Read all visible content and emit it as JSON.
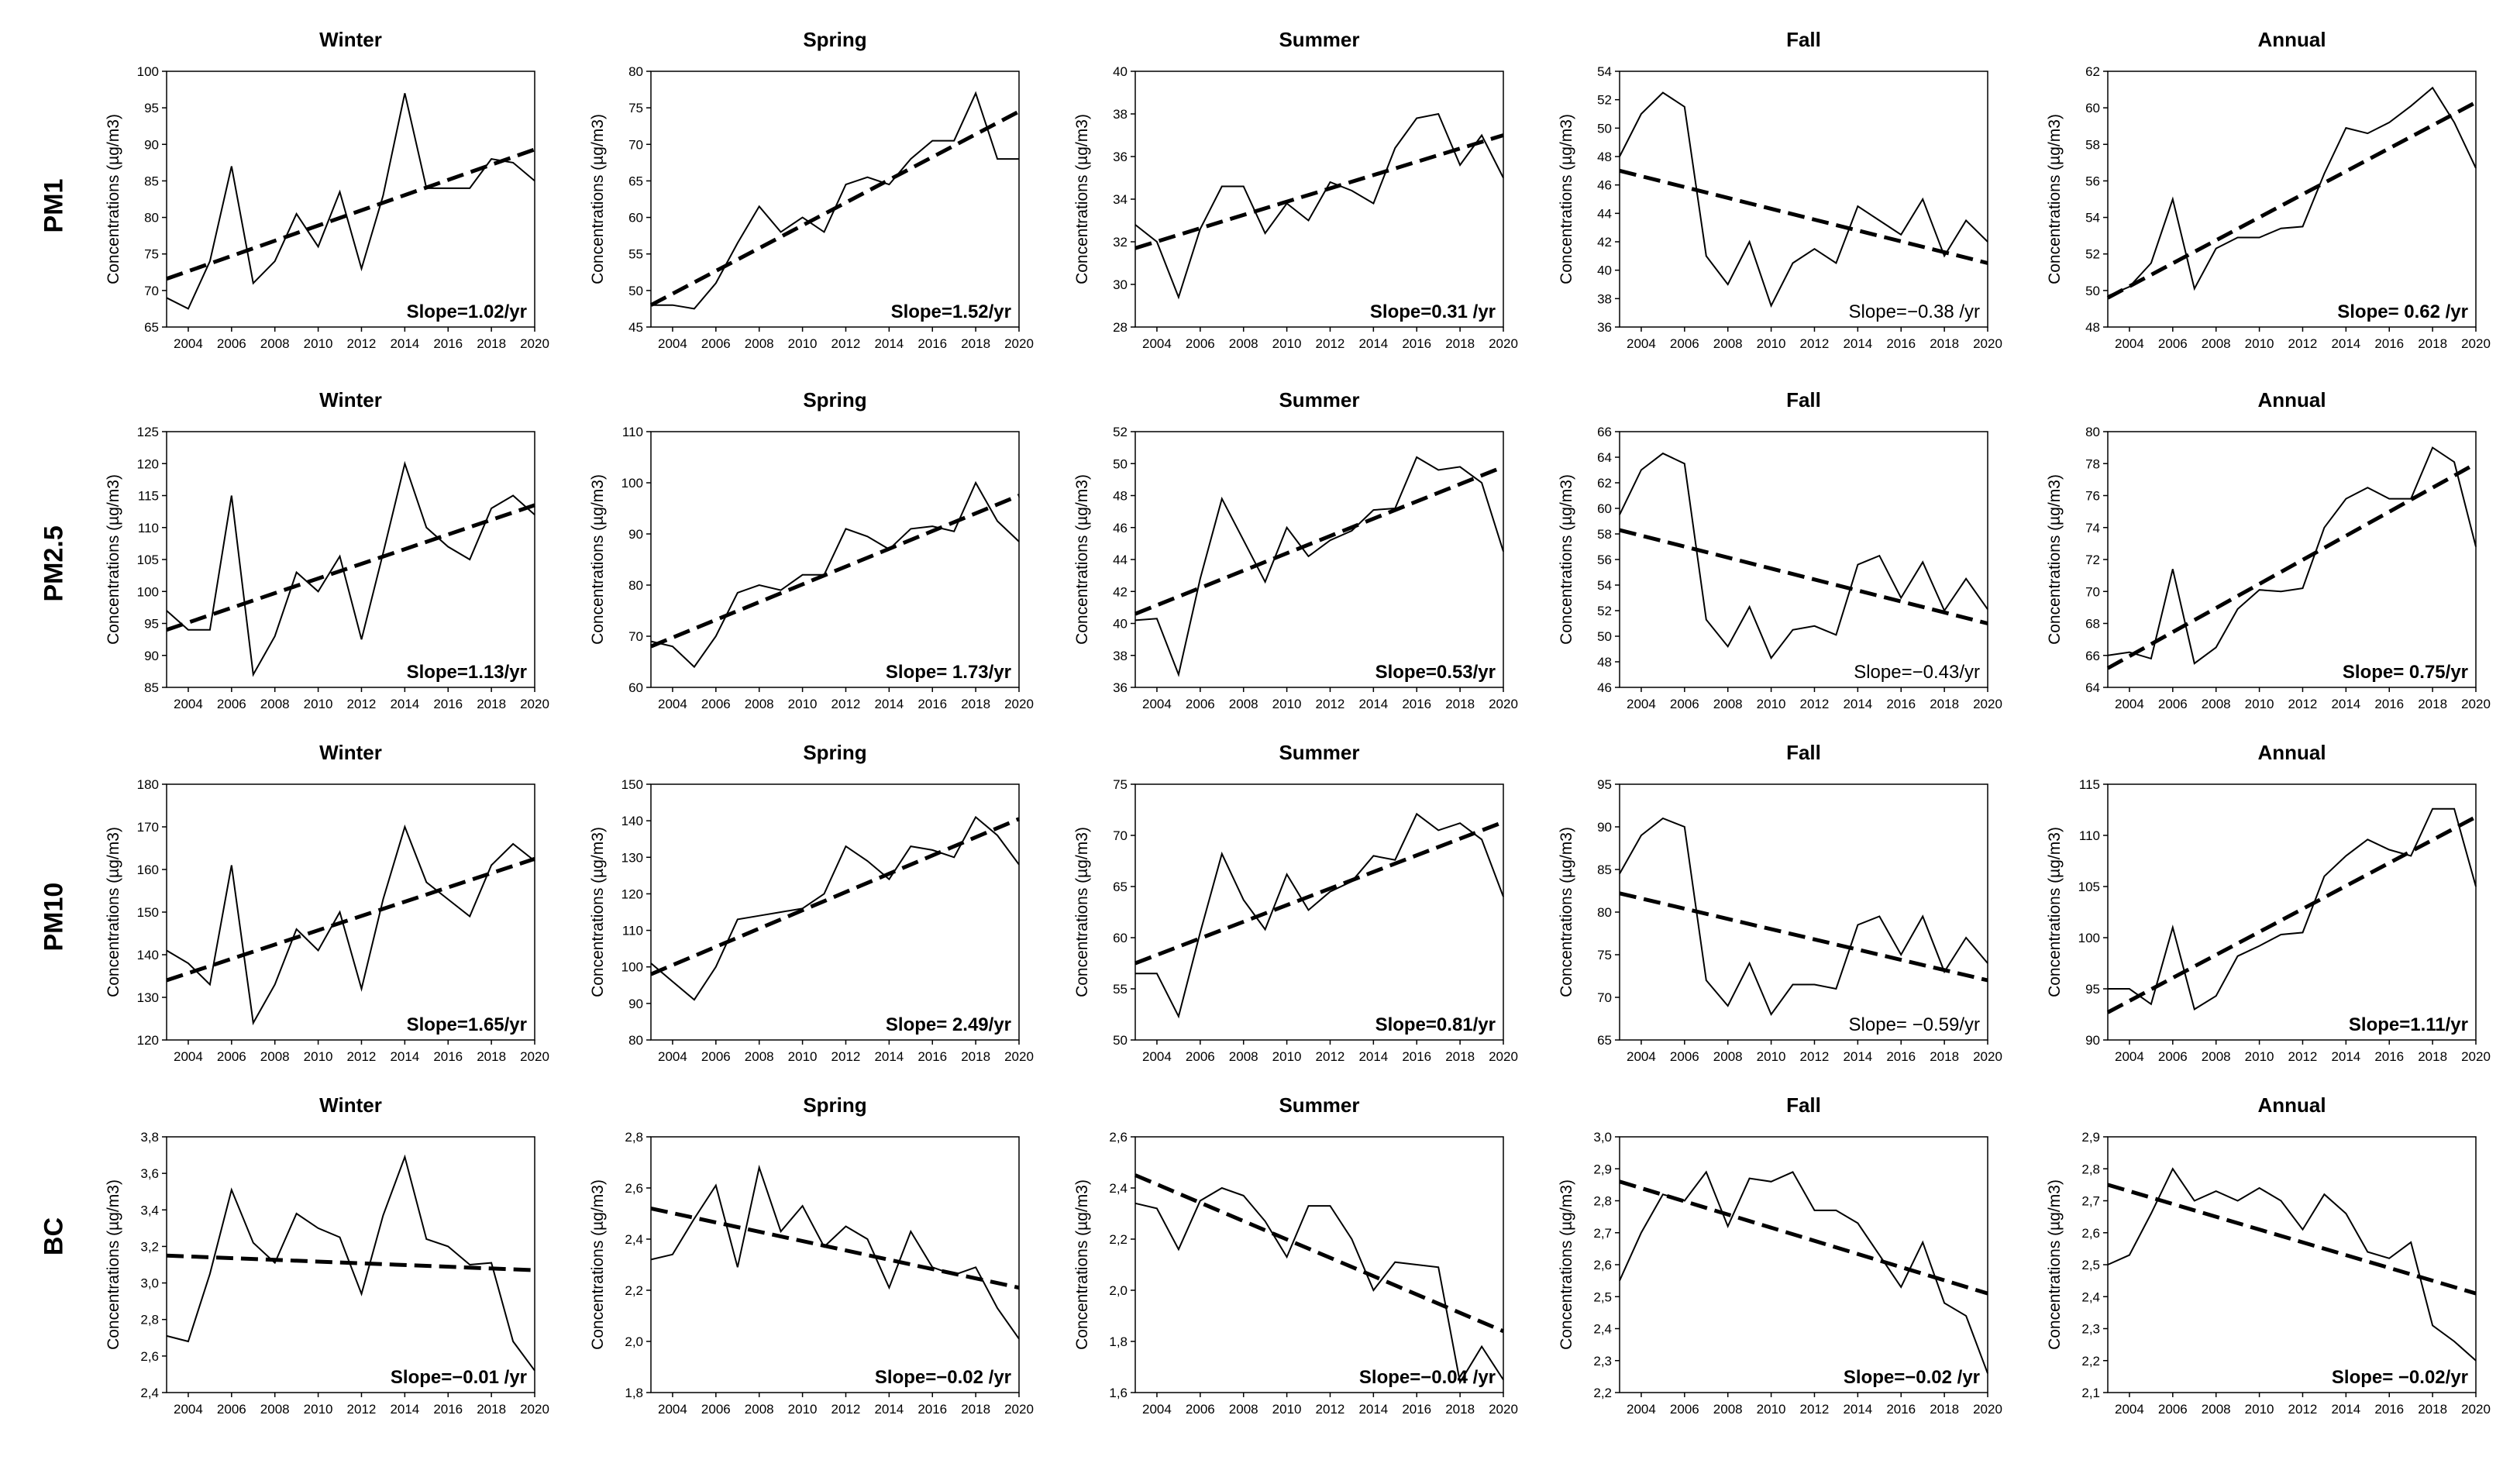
{
  "row_labels": [
    "PM1",
    "PM2.5",
    "PM10",
    "BC"
  ],
  "common": {
    "ylabel": "Concentrations (µg/m3)",
    "x_years": [
      2003,
      2004,
      2005,
      2006,
      2007,
      2008,
      2009,
      2010,
      2011,
      2012,
      2013,
      2014,
      2015,
      2016,
      2017,
      2018,
      2019,
      2020
    ],
    "x_ticks": [
      "2004",
      "2006",
      "2008",
      "2010",
      "2012",
      "2014",
      "2016",
      "2018",
      "2020"
    ]
  },
  "chart_data": [
    {
      "type": "line",
      "row": "PM1",
      "title": "Winter",
      "slope_label": "Slope=1.02/yr",
      "ylim": [
        65,
        100
      ],
      "yticks": [
        "65",
        "70",
        "75",
        "80",
        "85",
        "90",
        "95",
        "100"
      ],
      "values": [
        69,
        67.5,
        74,
        87,
        71,
        74,
        80.5,
        76,
        83.5,
        73,
        83,
        97,
        84,
        84,
        84,
        88,
        87.5,
        85
      ],
      "trend": [
        71.6,
        89.3
      ]
    },
    {
      "type": "line",
      "row": "PM1",
      "title": "Spring",
      "slope_label": "Slope=1.52/yr",
      "ylim": [
        45,
        80
      ],
      "yticks": [
        "45",
        "50",
        "55",
        "60",
        "65",
        "70",
        "75",
        "80"
      ],
      "values": [
        48,
        48,
        47.5,
        51,
        56.5,
        61.5,
        58,
        60,
        58,
        64.5,
        65.5,
        64.5,
        68,
        70.5,
        70.5,
        77,
        68,
        68
      ],
      "trend": [
        48,
        74.5
      ]
    },
    {
      "type": "line",
      "row": "PM1",
      "title": "Summer",
      "slope_label": "Slope=0.31 /yr",
      "ylim": [
        28,
        40
      ],
      "yticks": [
        "28",
        "30",
        "32",
        "34",
        "36",
        "38",
        "40"
      ],
      "values": [
        32.8,
        32,
        29.4,
        32.6,
        34.6,
        34.6,
        32.4,
        33.8,
        33,
        34.8,
        34.4,
        33.8,
        36.4,
        37.8,
        38,
        35.6,
        37,
        35
      ],
      "trend": [
        31.7,
        37
      ]
    },
    {
      "type": "line",
      "row": "PM1",
      "title": "Fall",
      "slope_label": "Slope=−0.38 /yr",
      "ylim": [
        36,
        54
      ],
      "yticks": [
        "36",
        "38",
        "40",
        "42",
        "44",
        "46",
        "48",
        "50",
        "52",
        "54"
      ],
      "values": [
        48,
        51,
        52.5,
        51.5,
        41,
        39,
        42,
        37.5,
        40.5,
        41.5,
        40.5,
        44.5,
        43.5,
        42.5,
        45,
        41,
        43.5,
        42
      ],
      "trend": [
        47,
        40.5
      ]
    },
    {
      "type": "line",
      "row": "PM1",
      "title": "Annual",
      "slope_label": "Slope= 0.62 /yr",
      "ylim": [
        48,
        62
      ],
      "yticks": [
        "48",
        "50",
        "52",
        "54",
        "56",
        "58",
        "60",
        "62"
      ],
      "values": [
        49.7,
        50.2,
        51.5,
        55,
        50.1,
        52.3,
        52.9,
        52.9,
        53.4,
        53.5,
        56.4,
        58.9,
        58.6,
        59.2,
        60.1,
        61.1,
        59.2,
        56.7
      ],
      "trend": [
        49.6,
        60.3
      ]
    },
    {
      "type": "line",
      "row": "PM2.5",
      "title": "Winter",
      "slope_label": "Slope=1.13/yr",
      "ylim": [
        85,
        125
      ],
      "yticks": [
        "85",
        "90",
        "95",
        "100",
        "105",
        "110",
        "115",
        "120",
        "125"
      ],
      "values": [
        97,
        94,
        94,
        115,
        87,
        93,
        103,
        100,
        105.5,
        92.5,
        106,
        120,
        110,
        107,
        105,
        113,
        115,
        112
      ],
      "trend": [
        94,
        113.5
      ]
    },
    {
      "type": "line",
      "row": "PM2.5",
      "title": "Spring",
      "slope_label": "Slope= 1.73/yr",
      "ylim": [
        60,
        110
      ],
      "yticks": [
        "60",
        "70",
        "80",
        "90",
        "100",
        "110"
      ],
      "values": [
        69,
        68,
        64,
        70,
        78.5,
        80,
        79,
        82,
        82,
        91,
        89.5,
        87,
        91,
        91.5,
        90.5,
        100,
        92.5,
        88.5
      ],
      "trend": [
        68,
        97.5
      ]
    },
    {
      "type": "line",
      "row": "PM2.5",
      "title": "Summer",
      "slope_label": "Slope=0.53/yr",
      "ylim": [
        36,
        52
      ],
      "yticks": [
        "36",
        "38",
        "40",
        "42",
        "44",
        "46",
        "48",
        "50",
        "52"
      ],
      "values": [
        40.2,
        40.3,
        36.8,
        42.8,
        47.8,
        45.2,
        42.6,
        46,
        44.2,
        45.2,
        45.8,
        47.1,
        47.2,
        50.4,
        49.6,
        49.8,
        48.8,
        44.5
      ],
      "trend": [
        40.6,
        49.8
      ]
    },
    {
      "type": "line",
      "row": "PM2.5",
      "title": "Fall",
      "slope_label": "Slope=−0.43/yr",
      "ylim": [
        46,
        66
      ],
      "yticks": [
        "46",
        "48",
        "50",
        "52",
        "54",
        "56",
        "58",
        "60",
        "62",
        "64",
        "66"
      ],
      "values": [
        59.5,
        63,
        64.3,
        63.5,
        51.3,
        49.2,
        52.3,
        48.3,
        50.5,
        50.8,
        50.1,
        55.6,
        56.3,
        53,
        55.8,
        52,
        54.5,
        52.1
      ],
      "trend": [
        58.3,
        51
      ]
    },
    {
      "type": "line",
      "row": "PM2.5",
      "title": "Annual",
      "slope_label": "Slope= 0.75/yr",
      "ylim": [
        64,
        80
      ],
      "yticks": [
        "64",
        "66",
        "68",
        "70",
        "72",
        "74",
        "76",
        "78",
        "80"
      ],
      "values": [
        66,
        66.2,
        65.8,
        71.4,
        65.5,
        66.5,
        68.9,
        70.1,
        70,
        70.2,
        74,
        75.8,
        76.5,
        75.8,
        75.8,
        79,
        78.1,
        72.8
      ],
      "trend": [
        65.2,
        78
      ]
    },
    {
      "type": "line",
      "row": "PM10",
      "title": "Winter",
      "slope_label": "Slope=1.65/yr",
      "ylim": [
        120,
        180
      ],
      "yticks": [
        "120",
        "130",
        "140",
        "150",
        "160",
        "170",
        "180"
      ],
      "values": [
        141,
        138,
        133,
        161,
        124,
        133,
        146,
        141,
        150,
        132,
        153,
        170,
        157,
        153,
        149,
        161,
        166,
        162
      ],
      "trend": [
        134,
        162.5
      ]
    },
    {
      "type": "line",
      "row": "PM10",
      "title": "Spring",
      "slope_label": "Slope= 2.49/yr",
      "ylim": [
        80,
        150
      ],
      "yticks": [
        "80",
        "90",
        "100",
        "110",
        "120",
        "130",
        "140",
        "150"
      ],
      "values": [
        101,
        96,
        91,
        100,
        113,
        114,
        115,
        116,
        120,
        133,
        129,
        124,
        133,
        132,
        130,
        141,
        136,
        128
      ],
      "trend": [
        98,
        140.5
      ]
    },
    {
      "type": "line",
      "row": "PM10",
      "title": "Summer",
      "slope_label": "Slope=0.81/yr",
      "ylim": [
        50,
        75
      ],
      "yticks": [
        "50",
        "55",
        "60",
        "65",
        "70",
        "75"
      ],
      "values": [
        56.5,
        56.5,
        52.3,
        60.5,
        68.2,
        63.7,
        60.8,
        66.2,
        62.7,
        64.5,
        65.5,
        68,
        67.6,
        72.1,
        70.5,
        71.2,
        69.6,
        64
      ],
      "trend": [
        57.5,
        71.3
      ]
    },
    {
      "type": "line",
      "row": "PM10",
      "title": "Fall",
      "slope_label": "Slope= −0.59/yr",
      "ylim": [
        65,
        95
      ],
      "yticks": [
        "65",
        "70",
        "75",
        "80",
        "85",
        "90",
        "95"
      ],
      "values": [
        84.5,
        89,
        91,
        90,
        72,
        69,
        74,
        68,
        71.5,
        71.5,
        71,
        78.5,
        79.5,
        75,
        79.5,
        73,
        77,
        74
      ],
      "trend": [
        82.2,
        72
      ]
    },
    {
      "type": "line",
      "row": "PM10",
      "title": "Annual",
      "slope_label": "Slope=1.11/yr",
      "ylim": [
        90,
        115
      ],
      "yticks": [
        "90",
        "95",
        "100",
        "105",
        "110",
        "115"
      ],
      "values": [
        95,
        95,
        93.5,
        101,
        93,
        94.3,
        98.2,
        99.2,
        100.3,
        100.5,
        106,
        108,
        109.6,
        108.6,
        108,
        112.6,
        112.6,
        105
      ],
      "trend": [
        92.7,
        111.8
      ]
    },
    {
      "type": "line",
      "row": "BC",
      "title": "Winter",
      "slope_label": "Slope=−0.01 /yr",
      "ylim": [
        2.4,
        3.8
      ],
      "yticks": [
        "2,4",
        "2,6",
        "2,8",
        "3,0",
        "3,2",
        "3,4",
        "3,6",
        "3,8"
      ],
      "values": [
        2.71,
        2.68,
        3.05,
        3.51,
        3.22,
        3.11,
        3.38,
        3.3,
        3.25,
        2.94,
        3.37,
        3.69,
        3.24,
        3.2,
        3.1,
        3.11,
        2.68,
        2.52
      ],
      "trend": [
        3.15,
        3.07
      ]
    },
    {
      "type": "line",
      "row": "BC",
      "title": "Spring",
      "slope_label": "Slope=−0.02 /yr",
      "ylim": [
        1.8,
        2.8
      ],
      "yticks": [
        "1,8",
        "2,0",
        "2,2",
        "2,4",
        "2,6",
        "2,8"
      ],
      "values": [
        2.32,
        2.34,
        2.48,
        2.61,
        2.29,
        2.68,
        2.43,
        2.53,
        2.37,
        2.45,
        2.4,
        2.21,
        2.43,
        2.29,
        2.26,
        2.29,
        2.13,
        2.01
      ],
      "trend": [
        2.52,
        2.21
      ]
    },
    {
      "type": "line",
      "row": "BC",
      "title": "Summer",
      "slope_label": "Slope=−0.04 /yr",
      "ylim": [
        1.6,
        2.6
      ],
      "yticks": [
        "1,6",
        "1,8",
        "2,0",
        "2,2",
        "2,4",
        "2,6"
      ],
      "values": [
        2.34,
        2.32,
        2.16,
        2.35,
        2.4,
        2.37,
        2.27,
        2.13,
        2.33,
        2.33,
        2.2,
        2,
        2.11,
        2.1,
        2.09,
        1.64,
        1.78,
        1.65
      ],
      "trend": [
        2.45,
        1.84
      ]
    },
    {
      "type": "line",
      "row": "BC",
      "title": "Fall",
      "slope_label": "Slope=−0.02 /yr",
      "ylim": [
        2.2,
        3.0
      ],
      "yticks": [
        "2,2",
        "2,3",
        "2,4",
        "2,5",
        "2,6",
        "2,7",
        "2,8",
        "2,9",
        "3,0"
      ],
      "values": [
        2.55,
        2.7,
        2.82,
        2.8,
        2.89,
        2.72,
        2.87,
        2.86,
        2.89,
        2.77,
        2.77,
        2.73,
        2.63,
        2.53,
        2.67,
        2.48,
        2.44,
        2.26
      ],
      "trend": [
        2.86,
        2.51
      ]
    },
    {
      "type": "line",
      "row": "BC",
      "title": "Annual",
      "slope_label": "Slope= −0.02/yr",
      "ylim": [
        2.1,
        2.9
      ],
      "yticks": [
        "2,1",
        "2,2",
        "2,3",
        "2,4",
        "2,5",
        "2,6",
        "2,7",
        "2,8",
        "2,9"
      ],
      "values": [
        2.5,
        2.53,
        2.66,
        2.8,
        2.7,
        2.73,
        2.7,
        2.74,
        2.7,
        2.61,
        2.72,
        2.66,
        2.54,
        2.52,
        2.57,
        2.31,
        2.26,
        2.2
      ],
      "trend": [
        2.75,
        2.41
      ]
    }
  ]
}
